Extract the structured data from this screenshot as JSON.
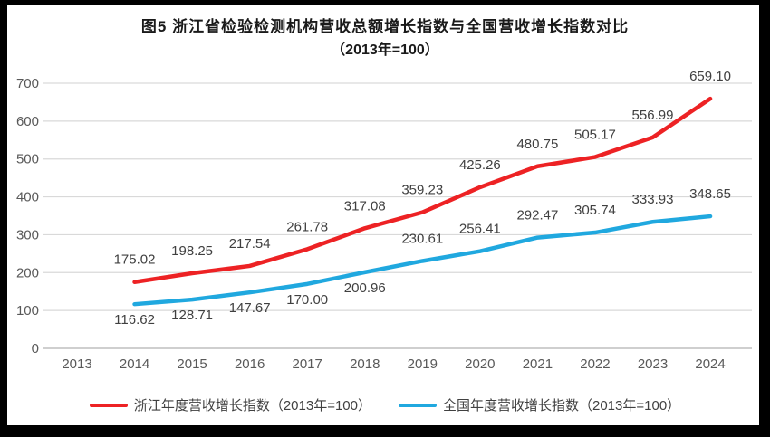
{
  "title": {
    "line1": "图5  浙江省检验检测机构营收总额增长指数与全国营收增长指数对比",
    "line2": "（2013年=100）"
  },
  "chart_data": {
    "type": "line",
    "categories": [
      "2013",
      "2014",
      "2015",
      "2016",
      "2017",
      "2018",
      "2019",
      "2020",
      "2021",
      "2022",
      "2023",
      "2024"
    ],
    "series": [
      {
        "name": "浙江年度营收增长指数（2013年=100）",
        "color": "#ED2224",
        "values": [
          null,
          175.02,
          198.25,
          217.54,
          261.78,
          317.08,
          359.23,
          425.26,
          480.75,
          505.17,
          556.99,
          659.1
        ],
        "label_sides": [
          null,
          "above",
          "above",
          "above",
          "above",
          "above",
          "above",
          "above",
          "above",
          "above",
          "above",
          "above"
        ]
      },
      {
        "name": "全国年度营收增长指数（2013年=100）",
        "color": "#20A8DF",
        "values": [
          null,
          116.62,
          128.71,
          147.67,
          170.0,
          200.96,
          230.61,
          256.41,
          292.47,
          305.74,
          333.93,
          348.65
        ],
        "label_sides": [
          null,
          "below",
          "below",
          "below",
          "below",
          "below",
          "above",
          "above",
          "above",
          "above",
          "above",
          "above"
        ]
      }
    ],
    "title": "图5 浙江省检验检测机构营收总额增长指数与全国营收增长指数对比（2013年=100）",
    "xlabel": "",
    "ylabel": "",
    "ylim": [
      0,
      700
    ],
    "yticks": [
      0,
      100,
      200,
      300,
      400,
      500,
      600,
      700
    ],
    "grid": true,
    "data_labels": true,
    "data_label_decimals": 2,
    "legend_position": "bottom",
    "grid_color": "#D9D9D9",
    "axis_line_color": "#BFBFBF",
    "tick_text_color": "#595959",
    "data_label_color": "#404040"
  }
}
